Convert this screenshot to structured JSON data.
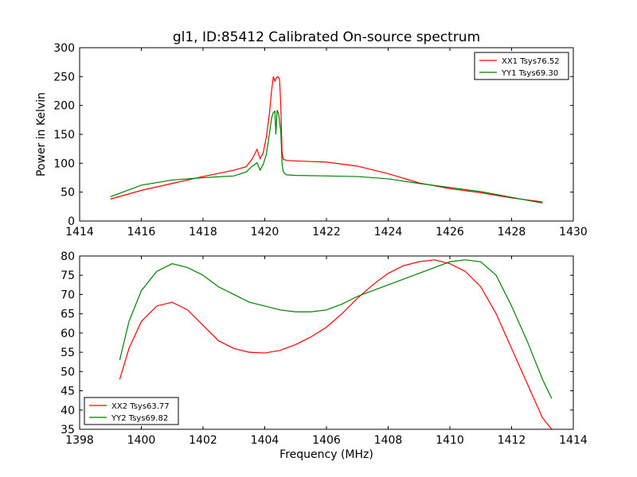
{
  "figure": {
    "title": "gl1, ID:85412 Calibrated On-source spectrum",
    "background": "#ffffff"
  },
  "colors": {
    "red": "#ff0000",
    "green": "#008000",
    "axes": "#000000"
  },
  "chart_data": [
    {
      "type": "line",
      "title": "gl1, ID:85412 Calibrated On-source spectrum",
      "xlabel": "",
      "ylabel": "Power in Kelvin",
      "xlim": [
        1414,
        1430
      ],
      "ylim": [
        0,
        300
      ],
      "xticks": [
        1414,
        1416,
        1418,
        1420,
        1422,
        1424,
        1426,
        1428,
        1430
      ],
      "yticks": [
        0,
        50,
        100,
        150,
        200,
        250,
        300
      ],
      "grid": false,
      "legend": "top-right",
      "series": [
        {
          "name": "XX1 Tsys76.52",
          "color": "#ff0000",
          "x": [
            1415.0,
            1416.0,
            1417.0,
            1418.0,
            1419.0,
            1419.4,
            1419.6,
            1419.75,
            1419.85,
            1419.95,
            1420.05,
            1420.15,
            1420.22,
            1420.28,
            1420.33,
            1420.38,
            1420.43,
            1420.48,
            1420.52,
            1420.56,
            1420.6,
            1420.7,
            1421.0,
            1422.0,
            1423.0,
            1424.0,
            1425.0,
            1426.0,
            1427.0,
            1428.0,
            1429.0
          ],
          "y": [
            38,
            53,
            65,
            77,
            88,
            94,
            108,
            124,
            108,
            118,
            145,
            185,
            225,
            250,
            242,
            248,
            250,
            245,
            200,
            120,
            107,
            105,
            104,
            102,
            95,
            82,
            66,
            56,
            49,
            40,
            33
          ]
        },
        {
          "name": "YY1 Tsys69.30",
          "color": "#008000",
          "x": [
            1415.0,
            1416.0,
            1417.0,
            1418.0,
            1419.0,
            1419.4,
            1419.6,
            1419.75,
            1419.85,
            1419.95,
            1420.05,
            1420.15,
            1420.22,
            1420.28,
            1420.33,
            1420.36,
            1420.4,
            1420.45,
            1420.52,
            1420.56,
            1420.6,
            1420.7,
            1421.0,
            1422.0,
            1423.0,
            1424.0,
            1425.0,
            1426.0,
            1427.0,
            1428.0,
            1429.0
          ],
          "y": [
            42,
            62,
            71,
            75,
            78,
            85,
            95,
            101,
            88,
            98,
            115,
            150,
            178,
            188,
            190,
            150,
            192,
            185,
            155,
            100,
            85,
            80,
            79,
            78,
            77,
            73,
            65,
            58,
            51,
            41,
            31
          ]
        }
      ]
    },
    {
      "type": "line",
      "title": "",
      "xlabel": "Frequency (MHz)",
      "ylabel": "",
      "xlim": [
        1398,
        1414
      ],
      "ylim": [
        35,
        80
      ],
      "xticks": [
        1398,
        1400,
        1402,
        1404,
        1406,
        1408,
        1410,
        1412,
        1414
      ],
      "yticks": [
        35,
        40,
        45,
        50,
        55,
        60,
        65,
        70,
        75,
        80
      ],
      "grid": false,
      "legend": "lower-left",
      "series": [
        {
          "name": "XX2 Tsys63.77",
          "color": "#ff0000",
          "x": [
            1399.3,
            1399.6,
            1400.0,
            1400.5,
            1401.0,
            1401.5,
            1402.0,
            1402.5,
            1403.0,
            1403.5,
            1404.0,
            1404.5,
            1405.0,
            1405.5,
            1406.0,
            1406.5,
            1407.0,
            1407.5,
            1408.0,
            1408.5,
            1409.0,
            1409.5,
            1410.0,
            1410.5,
            1411.0,
            1411.5,
            1412.0,
            1412.5,
            1413.0,
            1413.3
          ],
          "y": [
            48,
            56,
            63,
            67,
            68,
            66,
            62,
            58,
            56,
            55,
            54.8,
            55.5,
            57,
            59,
            61.5,
            65,
            69,
            72.5,
            75.5,
            77.5,
            78.5,
            79,
            78,
            76,
            72,
            65,
            56,
            47,
            38,
            35
          ]
        },
        {
          "name": "YY2 Tsys69.82",
          "color": "#008000",
          "x": [
            1399.3,
            1399.6,
            1400.0,
            1400.5,
            1401.0,
            1401.5,
            1402.0,
            1402.5,
            1403.0,
            1403.5,
            1404.0,
            1404.5,
            1405.0,
            1405.5,
            1406.0,
            1406.5,
            1407.0,
            1407.5,
            1408.0,
            1408.5,
            1409.0,
            1409.5,
            1410.0,
            1410.5,
            1411.0,
            1411.5,
            1412.0,
            1412.5,
            1413.0,
            1413.3
          ],
          "y": [
            53,
            63,
            71,
            76,
            78,
            77,
            75,
            72,
            70,
            68,
            67,
            66,
            65.5,
            65.5,
            66,
            67.5,
            69.5,
            71,
            72.5,
            74,
            75.5,
            77,
            78.5,
            79,
            78.5,
            75,
            67,
            58,
            48,
            43
          ]
        }
      ]
    }
  ]
}
